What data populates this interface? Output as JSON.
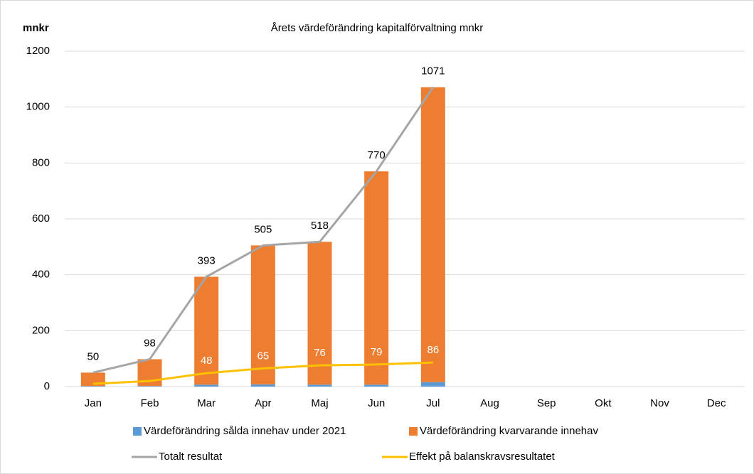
{
  "chart_data": {
    "type": "bar",
    "title": "Årets värdeförändring kapitalförvaltning mnkr",
    "ylabel": "mnkr",
    "categories": [
      "Jan",
      "Feb",
      "Mar",
      "Apr",
      "Maj",
      "Jun",
      "Jul",
      "Aug",
      "Sep",
      "Okt",
      "Nov",
      "Dec"
    ],
    "stacked": true,
    "series": [
      {
        "name": "Värdeförändring sålda innehav under 2021",
        "color": "#5b9bd5",
        "kind": "bar",
        "values": [
          2,
          2,
          7,
          8,
          7,
          7,
          16,
          null,
          null,
          null,
          null,
          null
        ]
      },
      {
        "name": "Värdeförändring kvarvarande innehav",
        "color": "#ed7d31",
        "kind": "bar",
        "values": [
          48,
          96,
          386,
          497,
          511,
          763,
          1055,
          null,
          null,
          null,
          null,
          null
        ]
      },
      {
        "name": "Totalt resultat",
        "color": "#a5a5a5",
        "kind": "line",
        "labels": "above",
        "values": [
          50,
          98,
          393,
          505,
          518,
          770,
          1071,
          null,
          null,
          null,
          null,
          null
        ]
      },
      {
        "name": "Effekt på balanskravsresultatet",
        "color": "#ffc000",
        "kind": "line",
        "labels": "white",
        "values": [
          10,
          20,
          48,
          65,
          76,
          79,
          86,
          null,
          null,
          null,
          null,
          null
        ],
        "value_labels": [
          null,
          null,
          "48",
          "65",
          "76",
          "79",
          "86",
          null,
          null,
          null,
          null,
          null
        ]
      }
    ],
    "ylim": [
      0,
      1200
    ],
    "yticks": [
      0,
      200,
      400,
      600,
      800,
      1000,
      1200
    ],
    "grid": true
  }
}
